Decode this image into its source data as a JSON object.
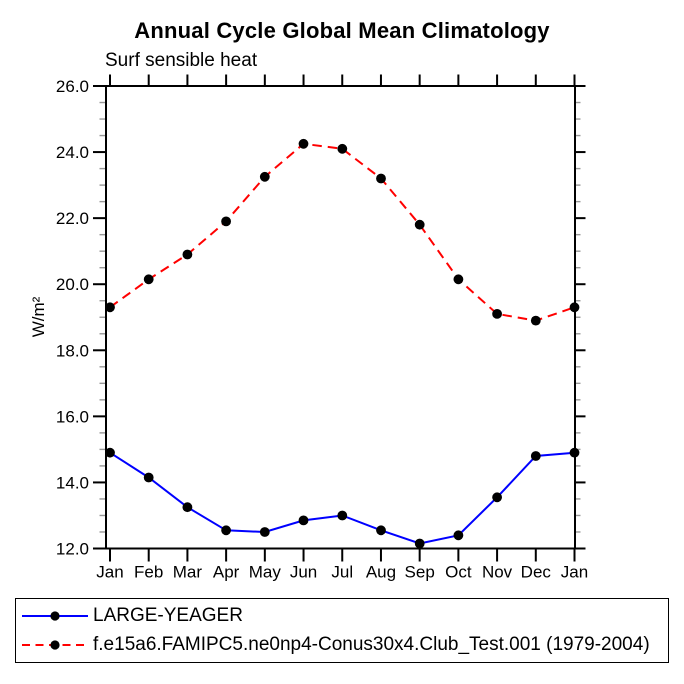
{
  "chart": {
    "title": "Annual Cycle Global Mean Climatology",
    "subtitle": "Surf sensible heat",
    "y_axis_label": "W/m²"
  },
  "chart_data": {
    "type": "line",
    "title": "Annual Cycle Global Mean Climatology",
    "subtitle": "Surf sensible heat",
    "xlabel": "",
    "ylabel": "W/m²",
    "categories": [
      "Jan",
      "Feb",
      "Mar",
      "Apr",
      "May",
      "Jun",
      "Jul",
      "Aug",
      "Sep",
      "Oct",
      "Nov",
      "Dec",
      "Jan"
    ],
    "ylim": [
      12.0,
      26.0
    ],
    "ytick_major_step": 2.0,
    "ytick_minor_step": 0.5,
    "ytick_labels": [
      "12.0",
      "14.0",
      "16.0",
      "18.0",
      "20.0",
      "22.0",
      "24.0",
      "26.0"
    ],
    "grid": false,
    "legend_position": "bottom-left-outside",
    "axis_color": "#000000",
    "minor_tick_color": "#999999",
    "marker": "filled-circle",
    "series": [
      {
        "name": "LARGE-YEAGER",
        "color": "#0000ff",
        "line_style": "solid",
        "marker_color": "#000000",
        "values": [
          14.9,
          14.15,
          13.25,
          12.55,
          12.5,
          12.85,
          13.0,
          12.55,
          12.15,
          12.4,
          13.55,
          14.8,
          14.9
        ]
      },
      {
        "name": "f.e15a6.FAMIPC5.ne0np4-Conus30x4.Club_Test.001 (1979-2004)",
        "color": "#ff0000",
        "line_style": "dashed",
        "marker_color": "#000000",
        "values": [
          19.3,
          20.15,
          20.9,
          21.9,
          23.25,
          24.25,
          24.1,
          23.2,
          21.8,
          20.15,
          19.1,
          18.9,
          19.3
        ]
      }
    ]
  }
}
